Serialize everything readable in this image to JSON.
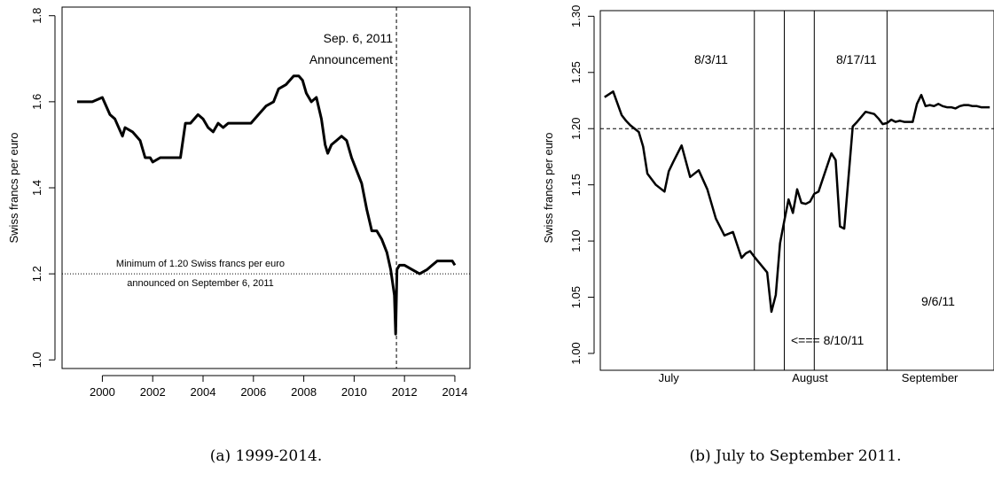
{
  "chart_data": [
    {
      "id": "a",
      "type": "line",
      "caption": "(a) 1999-2014.",
      "ylabel": "Swiss francs per euro",
      "xlim": [
        1998.4,
        2014.6
      ],
      "ylim": [
        0.98,
        1.82
      ],
      "xticks": [
        2000,
        2002,
        2004,
        2006,
        2008,
        2010,
        2012,
        2014
      ],
      "xtick_labels": [
        "2000",
        "2002",
        "2004",
        "2006",
        "2008",
        "2010",
        "2012",
        "2014"
      ],
      "yticks": [
        1.0,
        1.2,
        1.4,
        1.6,
        1.8
      ],
      "ytick_labels": [
        "1.0",
        "1.2",
        "1.4",
        "1.6",
        "1.8"
      ],
      "vline": {
        "x": 2011.68,
        "style": "dashed"
      },
      "hline": {
        "y": 1.2,
        "style": "dotted"
      },
      "annotations": {
        "date_label": "Sep. 6, 2011",
        "event_label": "Announcement",
        "floor_line1": "Minimum of 1.20 Swiss francs per euro",
        "floor_line2": "announced on September 6, 2011"
      },
      "series": [
        {
          "x": [
            1999.0,
            1999.3,
            1999.6,
            2000.0,
            2000.3,
            2000.5,
            2000.8,
            2000.9,
            2001.2,
            2001.5,
            2001.7,
            2001.9,
            2002.0,
            2002.3,
            2002.6,
            2002.9,
            2003.1,
            2003.3,
            2003.5,
            2003.8,
            2004.0,
            2004.2,
            2004.4,
            2004.6,
            2004.8,
            2005.0,
            2005.3,
            2005.6,
            2005.9,
            2006.2,
            2006.5,
            2006.8,
            2007.0,
            2007.3,
            2007.6,
            2007.8,
            2007.95,
            2008.1,
            2008.3,
            2008.5,
            2008.7,
            2008.85,
            2008.95,
            2009.1,
            2009.3,
            2009.5,
            2009.7,
            2009.9,
            2010.1,
            2010.3,
            2010.5,
            2010.7,
            2010.9,
            2011.1,
            2011.3,
            2011.45,
            2011.55,
            2011.6,
            2011.65,
            2011.7,
            2011.8,
            2012.0,
            2012.3,
            2012.6,
            2012.9,
            2013.1,
            2013.3,
            2013.6,
            2013.9,
            2014.0
          ],
          "y": [
            1.6,
            1.6,
            1.6,
            1.61,
            1.57,
            1.56,
            1.52,
            1.54,
            1.53,
            1.51,
            1.47,
            1.47,
            1.46,
            1.47,
            1.47,
            1.47,
            1.47,
            1.55,
            1.55,
            1.57,
            1.56,
            1.54,
            1.53,
            1.55,
            1.54,
            1.55,
            1.55,
            1.55,
            1.55,
            1.57,
            1.59,
            1.6,
            1.63,
            1.64,
            1.66,
            1.66,
            1.65,
            1.62,
            1.6,
            1.61,
            1.56,
            1.5,
            1.48,
            1.5,
            1.51,
            1.52,
            1.51,
            1.47,
            1.44,
            1.41,
            1.35,
            1.3,
            1.3,
            1.28,
            1.25,
            1.21,
            1.17,
            1.15,
            1.06,
            1.21,
            1.22,
            1.22,
            1.21,
            1.2,
            1.21,
            1.22,
            1.23,
            1.23,
            1.23,
            1.22
          ]
        }
      ]
    },
    {
      "id": "b",
      "type": "line",
      "caption": "(b) July to September 2011.",
      "ylabel": "Swiss francs per euro",
      "xlim": [
        0,
        92
      ],
      "ylim": [
        0.985,
        1.305
      ],
      "xtick_labels": [
        "July",
        "August",
        "September"
      ],
      "xtick_positions": [
        16,
        49,
        77
      ],
      "yticks": [
        1.0,
        1.05,
        1.1,
        1.15,
        1.2,
        1.25,
        1.3
      ],
      "ytick_labels": [
        "1.00",
        "1.05",
        "1.10",
        "1.15",
        "1.20",
        "1.25",
        "1.30"
      ],
      "hline": {
        "y": 1.2,
        "style": "dashed"
      },
      "vlines": [
        36,
        43,
        50,
        67
      ],
      "annotations": {
        "date1": "8/3/11",
        "date2": "8/17/11",
        "date3": "<=== 8/10/11",
        "date4": "9/6/11"
      },
      "series": [
        {
          "x": [
            1,
            3,
            5,
            6,
            7,
            9,
            10,
            11,
            13,
            15,
            16,
            17,
            19,
            21,
            23,
            25,
            27,
            29,
            31,
            33,
            34,
            35,
            36,
            39,
            40,
            41,
            42,
            43,
            44,
            45,
            46,
            47,
            48,
            49,
            50,
            51,
            54,
            55,
            56,
            57,
            59,
            60,
            62,
            64,
            65,
            66,
            67,
            68,
            69,
            70,
            71,
            72,
            73,
            74,
            75,
            76,
            77,
            78,
            79,
            80,
            81,
            82,
            83,
            84,
            85,
            86,
            87,
            88,
            89,
            90,
            91
          ],
          "y": [
            1.228,
            1.233,
            1.212,
            1.207,
            1.203,
            1.197,
            1.184,
            1.16,
            1.15,
            1.144,
            1.162,
            1.17,
            1.185,
            1.157,
            1.163,
            1.146,
            1.12,
            1.105,
            1.108,
            1.085,
            1.089,
            1.091,
            1.086,
            1.072,
            1.037,
            1.052,
            1.098,
            1.118,
            1.137,
            1.125,
            1.146,
            1.134,
            1.133,
            1.135,
            1.142,
            1.144,
            1.178,
            1.172,
            1.113,
            1.111,
            1.202,
            1.206,
            1.215,
            1.213,
            1.209,
            1.204,
            1.205,
            1.208,
            1.206,
            1.207,
            1.206,
            1.206,
            1.206,
            1.222,
            1.23,
            1.22,
            1.221,
            1.22,
            1.222,
            1.22,
            1.219,
            1.219,
            1.218,
            1.22,
            1.221,
            1.221,
            1.22,
            1.22,
            1.219,
            1.219,
            1.219
          ]
        }
      ]
    }
  ]
}
